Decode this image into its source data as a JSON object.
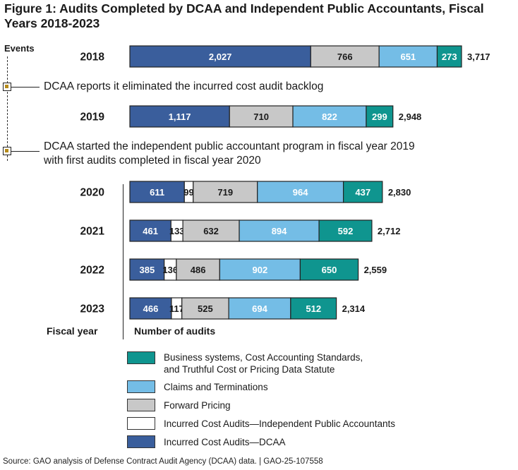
{
  "title": "Figure 1: Audits Completed by DCAA and Independent Public Accountants, Fiscal Years 2018-2023",
  "events_label": "Events",
  "events": [
    {
      "text": "DCAA reports it eliminated the incurred cost audit backlog"
    },
    {
      "text_line1": "DCAA started the independent public accountant program in fiscal year 2019",
      "text_line2": "with first audits completed in fiscal year 2020"
    }
  ],
  "x_axis_label": "Number of audits",
  "y_axis_label": "Fiscal year",
  "source": "Source: GAO analysis of Defense Contract Audit Agency (DCAA) data.  |  GAO-25-107558",
  "colors": {
    "incurred_dcaa": "#3a5e9c",
    "incurred_ipa": "#ffffff",
    "forward_pricing": "#c8c8c8",
    "claims": "#74bde6",
    "business_systems": "#0f958f",
    "border": "#222222"
  },
  "legend": [
    {
      "key": "business_systems",
      "label_line1": "Business systems, Cost Accounting Standards,",
      "label_line2": "and Truthful Cost or Pricing Data Statute"
    },
    {
      "key": "claims",
      "label_line1": "Claims and Terminations",
      "label_line2": ""
    },
    {
      "key": "forward_pricing",
      "label_line1": "Forward Pricing",
      "label_line2": ""
    },
    {
      "key": "incurred_ipa",
      "label_line1": "Incurred Cost Audits—Independent Public Accountants",
      "label_line2": ""
    },
    {
      "key": "incurred_dcaa",
      "label_line1": "Incurred Cost Audits—DCAA",
      "label_line2": ""
    }
  ],
  "chart_data": {
    "type": "bar",
    "orientation": "horizontal",
    "stacked": true,
    "title": "Figure 1: Audits Completed by DCAA and Independent Public Accountants, Fiscal Years 2018-2023",
    "xlabel": "Number of audits",
    "ylabel": "Fiscal year",
    "categories": [
      "2018",
      "2019",
      "2020",
      "2021",
      "2022",
      "2023"
    ],
    "series": [
      {
        "name": "Incurred Cost Audits—DCAA",
        "key": "incurred_dcaa",
        "values": [
          2027,
          1117,
          611,
          461,
          385,
          466
        ],
        "label_color": "#ffffff"
      },
      {
        "name": "Incurred Cost Audits—Independent Public Accountants",
        "key": "incurred_ipa",
        "values": [
          0,
          0,
          99,
          133,
          136,
          117
        ],
        "label_color": "#1a1a1a"
      },
      {
        "name": "Forward Pricing",
        "key": "forward_pricing",
        "values": [
          766,
          710,
          719,
          632,
          486,
          525
        ],
        "label_color": "#1a1a1a"
      },
      {
        "name": "Claims and Terminations",
        "key": "claims",
        "values": [
          651,
          822,
          964,
          894,
          902,
          694
        ],
        "label_color": "#ffffff"
      },
      {
        "name": "Business systems, Cost Accounting Standards, and Truthful Cost or Pricing Data Statute",
        "key": "business_systems",
        "values": [
          273,
          299,
          437,
          592,
          650,
          512
        ],
        "label_color": "#ffffff"
      }
    ],
    "totals": [
      3717,
      2948,
      2830,
      2712,
      2559,
      2314
    ],
    "value_labels": [
      [
        "2,027",
        "",
        "766",
        "651",
        "273"
      ],
      [
        "1,117",
        "",
        "710",
        "822",
        "299"
      ],
      [
        "611",
        "99",
        "719",
        "964",
        "437"
      ],
      [
        "461",
        "133",
        "632",
        "894",
        "592"
      ],
      [
        "385",
        "136",
        "486",
        "902",
        "650"
      ],
      [
        "466",
        "117",
        "525",
        "694",
        "512"
      ]
    ],
    "total_labels": [
      "3,717",
      "2,948",
      "2,830",
      "2,712",
      "2,559",
      "2,314"
    ],
    "xlim": [
      0,
      3717
    ],
    "grid": false,
    "legend_position": "bottom"
  }
}
